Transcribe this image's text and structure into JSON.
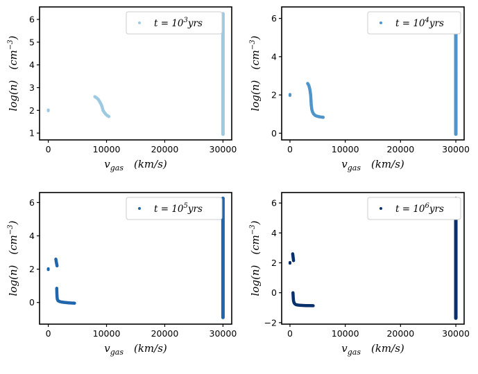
{
  "chart_data": [
    {
      "type": "scatter",
      "legend": {
        "label_prefix": "t = 10",
        "exponent": "3",
        "unit": "yrs",
        "placement": "top-right"
      },
      "xlabel": {
        "symbol": "v",
        "subscript": "gas",
        "unit": "(km/s)"
      },
      "ylabel": {
        "text": "log(n)",
        "unit": "(cm",
        "exponent": "−3",
        "close": ")"
      },
      "xlim": [
        -1500,
        31500
      ],
      "ylim": [
        0.7,
        6.55
      ],
      "xticks": [
        0,
        10000,
        20000,
        30000
      ],
      "yticks": [
        1,
        2,
        3,
        4,
        5,
        6
      ],
      "color": "#9ecae1",
      "marker_size": 2,
      "series": [
        {
          "kind": "points",
          "x": [
            0,
            0,
            0
          ],
          "y": [
            1.98,
            2.0,
            2.02
          ]
        },
        {
          "kind": "curve",
          "x": [
            8000,
            8300,
            8600,
            8900,
            9100,
            9250,
            9400,
            9600,
            9800,
            10000,
            10200,
            10400
          ],
          "y": [
            2.6,
            2.55,
            2.48,
            2.35,
            2.25,
            2.15,
            2.0,
            1.92,
            1.85,
            1.8,
            1.76,
            1.73
          ]
        },
        {
          "kind": "vertical",
          "x": 30000,
          "y_from": 0.95,
          "y_to": 6.25
        }
      ]
    },
    {
      "type": "scatter",
      "legend": {
        "label_prefix": "t = 10",
        "exponent": "4",
        "unit": "yrs",
        "placement": "top-right"
      },
      "xlabel": {
        "symbol": "v",
        "subscript": "gas",
        "unit": "(km/s)"
      },
      "ylabel": {
        "text": "log(n)",
        "unit": "(cm",
        "exponent": "−3",
        "close": ")"
      },
      "xlim": [
        -1500,
        31500
      ],
      "ylim": [
        -0.35,
        6.6
      ],
      "xticks": [
        0,
        10000,
        20000,
        30000
      ],
      "yticks": [
        0,
        2,
        4,
        6
      ],
      "color": "#4f95c9",
      "marker_size": 2,
      "series": [
        {
          "kind": "points",
          "x": [
            0,
            0,
            0
          ],
          "y": [
            1.97,
            2.0,
            2.03
          ]
        },
        {
          "kind": "curve",
          "x": [
            3200,
            3400,
            3600,
            3750,
            3850,
            3950,
            4100,
            4300,
            4600,
            5000,
            5500,
            6000
          ],
          "y": [
            2.6,
            2.5,
            2.3,
            2.0,
            1.5,
            1.25,
            1.1,
            1.0,
            0.92,
            0.88,
            0.85,
            0.83
          ]
        },
        {
          "kind": "vertical",
          "x": 30000,
          "y_from": -0.05,
          "y_to": 6.25
        }
      ]
    },
    {
      "type": "scatter",
      "legend": {
        "label_prefix": "t = 10",
        "exponent": "5",
        "unit": "yrs",
        "placement": "top-right"
      },
      "xlabel": {
        "symbol": "v",
        "subscript": "gas",
        "unit": "(km/s)"
      },
      "ylabel": {
        "text": "log(n)",
        "unit": "(cm",
        "exponent": "−3",
        "close": ")"
      },
      "xlim": [
        -1500,
        31500
      ],
      "ylim": [
        -1.3,
        6.6
      ],
      "xticks": [
        0,
        10000,
        20000,
        30000
      ],
      "yticks": [
        0,
        2,
        4,
        6
      ],
      "color": "#2166ac",
      "marker_size": 2,
      "series": [
        {
          "kind": "points",
          "x": [
            0,
            0,
            0
          ],
          "y": [
            1.97,
            2.0,
            2.03
          ]
        },
        {
          "kind": "curve",
          "x": [
            1300,
            1350,
            1400,
            1450,
            1500
          ],
          "y": [
            2.6,
            2.5,
            2.4,
            2.3,
            2.2
          ]
        },
        {
          "kind": "curve",
          "x": [
            1450,
            1480,
            1500,
            1550,
            1650,
            1800,
            2000,
            2400,
            2900,
            3500,
            4000,
            4500
          ],
          "y": [
            0.85,
            0.55,
            0.35,
            0.2,
            0.12,
            0.08,
            0.05,
            0.02,
            0.0,
            -0.02,
            -0.03,
            -0.04
          ]
        },
        {
          "kind": "vertical",
          "x": 30000,
          "y_from": -0.9,
          "y_to": 6.25
        }
      ]
    },
    {
      "type": "scatter",
      "legend": {
        "label_prefix": "t = 10",
        "exponent": "6",
        "unit": "yrs",
        "placement": "top-right"
      },
      "xlabel": {
        "symbol": "v",
        "subscript": "gas",
        "unit": "(km/s)"
      },
      "ylabel": {
        "text": "log(n)",
        "unit": "(cm",
        "exponent": "−3",
        "close": ")"
      },
      "xlim": [
        -1500,
        31500
      ],
      "ylim": [
        -2.1,
        6.7
      ],
      "xticks": [
        0,
        10000,
        20000,
        30000
      ],
      "yticks": [
        -2,
        0,
        2,
        4,
        6
      ],
      "color": "#08306b",
      "marker_size": 2,
      "series": [
        {
          "kind": "points",
          "x": [
            0,
            0,
            0
          ],
          "y": [
            1.97,
            2.0,
            2.03
          ]
        },
        {
          "kind": "curve",
          "x": [
            500,
            550,
            600,
            650
          ],
          "y": [
            2.6,
            2.45,
            2.3,
            2.15
          ]
        },
        {
          "kind": "curve",
          "x": [
            550,
            600,
            650,
            750,
            900,
            1100,
            1400,
            1800,
            2300,
            2900,
            3500,
            4200
          ],
          "y": [
            0.0,
            -0.35,
            -0.55,
            -0.68,
            -0.75,
            -0.8,
            -0.82,
            -0.84,
            -0.85,
            -0.86,
            -0.86,
            -0.87
          ]
        },
        {
          "kind": "vertical",
          "x": 30000,
          "y_from": -1.7,
          "y_to": 6.3
        }
      ]
    }
  ]
}
